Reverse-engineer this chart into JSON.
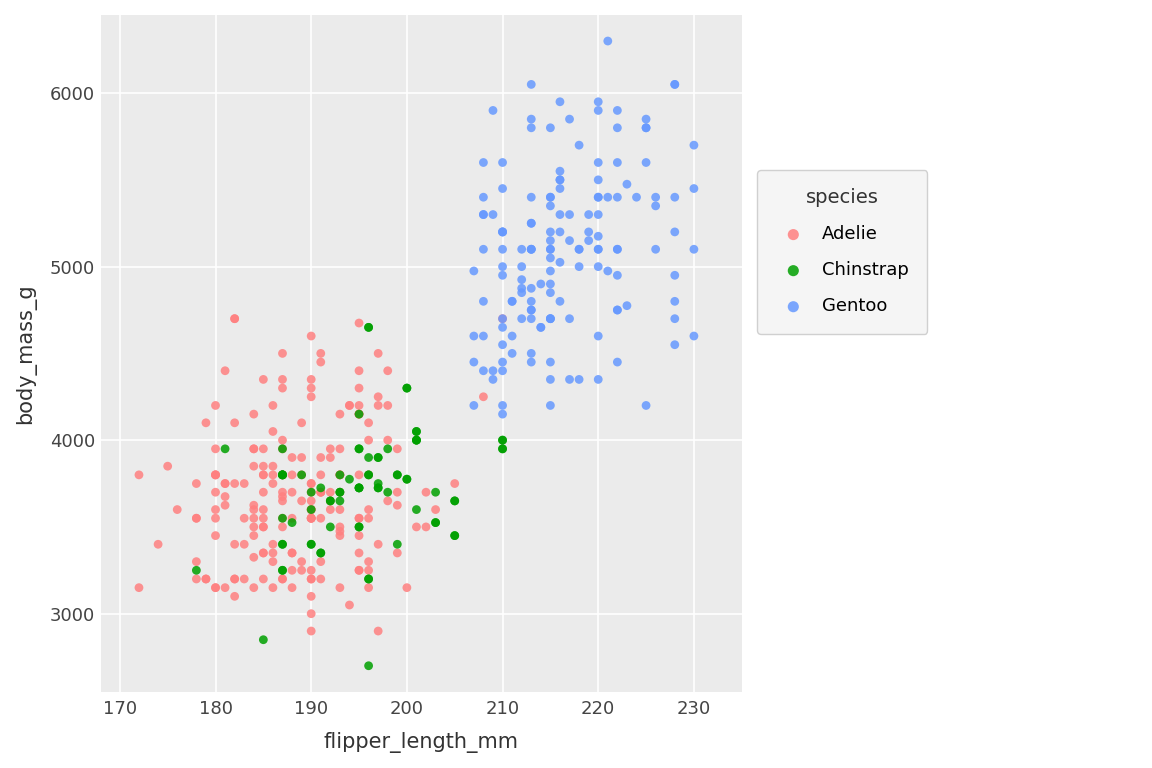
{
  "title": "",
  "xlabel": "flipper_length_mm",
  "ylabel": "body_mass_g",
  "legend_title": "species",
  "species": {
    "Adelie": {
      "color": "#FF8080",
      "flipper_length_mm": [
        181,
        186,
        195,
        193,
        190,
        181,
        195,
        193,
        190,
        186,
        180,
        182,
        191,
        198,
        185,
        195,
        197,
        184,
        194,
        174,
        180,
        189,
        185,
        180,
        187,
        183,
        187,
        172,
        180,
        178,
        178,
        188,
        184,
        195,
        196,
        190,
        180,
        181,
        184,
        182,
        195,
        186,
        196,
        185,
        190,
        182,
        179,
        188,
        185,
        195,
        180,
        180,
        187,
        183,
        187,
        172,
        180,
        178,
        178,
        188,
        184,
        195,
        196,
        190,
        180,
        181,
        184,
        182,
        195,
        186,
        196,
        185,
        190,
        182,
        179,
        188,
        185,
        182,
        180,
        191,
        193,
        185,
        182,
        184,
        184,
        182,
        183,
        187,
        179,
        186,
        188,
        190,
        175,
        186,
        187,
        190,
        180,
        185,
        187,
        191,
        186,
        193,
        181,
        194,
        185,
        195,
        185,
        192,
        184,
        192,
        195,
        188,
        190,
        198,
        190,
        190,
        196,
        197,
        190,
        195,
        191,
        184,
        187,
        195,
        189,
        196,
        187,
        193,
        191,
        194,
        190,
        189,
        189,
        190,
        202,
        205,
        185,
        186,
        187,
        208,
        190,
        196,
        178,
        192,
        192,
        203,
        183,
        190,
        193,
        184,
        199,
        190,
        181,
        197,
        198,
        191,
        193,
        197,
        191,
        196,
        188,
        199,
        189,
        189,
        187,
        198,
        176,
        202,
        186,
        199,
        191,
        195,
        191,
        210,
        190,
        197,
        193,
        199,
        187,
        190,
        191,
        200,
        185,
        193,
        193,
        187,
        188,
        190,
        192,
        185,
        190,
        184,
        195,
        193,
        187,
        201
      ],
      "body_mass_g": [
        3750,
        3800,
        3250,
        3450,
        3650,
        3625,
        4675,
        3475,
        4250,
        3300,
        3700,
        3200,
        3800,
        4400,
        3700,
        3450,
        4500,
        3325,
        4200,
        3400,
        3600,
        3800,
        3950,
        3800,
        3800,
        3550,
        3200,
        3150,
        3950,
        3550,
        3300,
        3700,
        3450,
        4400,
        3600,
        3100,
        4200,
        3150,
        3550,
        3200,
        3550,
        3750,
        4100,
        3350,
        3550,
        4700,
        3200,
        3800,
        3350,
        3800,
        3150,
        3800,
        3550,
        3200,
        3950,
        3800,
        3800,
        3550,
        3200,
        3150,
        3950,
        3550,
        3300,
        3700,
        3450,
        4400,
        3600,
        3100,
        4200,
        3150,
        3550,
        3200,
        3550,
        3750,
        4100,
        3350,
        3550,
        4700,
        3150,
        3700,
        3800,
        3800,
        3400,
        3850,
        3950,
        4100,
        3750,
        3200,
        3200,
        3350,
        3550,
        3600,
        3850,
        3850,
        3650,
        3200,
        3550,
        3500,
        3675,
        4450,
        3400,
        4150,
        3750,
        3050,
        3800,
        3250,
        3600,
        3900,
        4150,
        3950,
        4150,
        3900,
        4600,
        3650,
        3200,
        3600,
        4000,
        4200,
        3750,
        4150,
        3700,
        3500,
        4300,
        4150,
        4100,
        3800,
        3700,
        3800,
        3700,
        4200,
        3550,
        3650,
        3250,
        3600,
        3700,
        3750,
        3850,
        4200,
        4000,
        4250,
        3250,
        3250,
        3750,
        3650,
        3600,
        3600,
        3400,
        3000,
        3700,
        3625,
        3625,
        3750,
        3675,
        4250,
        4000,
        4500,
        3600,
        3400,
        3900,
        3150,
        3250,
        3700,
        3900,
        3300,
        4500,
        4200,
        3600,
        3500,
        4050,
        3950,
        3550,
        4300,
        3200,
        4700,
        4350,
        2900,
        3150,
        3350,
        4350,
        3550,
        3300,
        3150,
        3500,
        3950,
        3800,
        3500,
        3350,
        4300,
        3700,
        4350,
        2900,
        3150,
        3350,
        3500,
        3800,
        3500
      ]
    },
    "Chinstrap": {
      "color": "#00A000",
      "flipper_length_mm": [
        192,
        196,
        193,
        188,
        197,
        198,
        178,
        197,
        195,
        198,
        193,
        194,
        185,
        201,
        190,
        201,
        197,
        181,
        190,
        195,
        191,
        187,
        193,
        195,
        197,
        200,
        200,
        191,
        205,
        187,
        201,
        187,
        203,
        195,
        199,
        195,
        210,
        192,
        205,
        210,
        187,
        196,
        196,
        196,
        201,
        190,
        187,
        187,
        193,
        195,
        197,
        200,
        200,
        191,
        205,
        187,
        201,
        187,
        203,
        195,
        199,
        195,
        210,
        192,
        205,
        210,
        187,
        196,
        196,
        196,
        201,
        190,
        187,
        196,
        199,
        189,
        203
      ],
      "body_mass_g": [
        3500,
        3900,
        3650,
        3525,
        3725,
        3950,
        3250,
        3750,
        4150,
        3700,
        3800,
        3775,
        2850,
        4000,
        3700,
        3600,
        3725,
        3950,
        3600,
        3725,
        3725,
        3550,
        3700,
        3725,
        3900,
        3775,
        4300,
        3350,
        3450,
        3250,
        4050,
        3800,
        3525,
        3950,
        3800,
        3500,
        3950,
        3650,
        3650,
        4000,
        3400,
        4650,
        3200,
        3800,
        4000,
        3400,
        3800,
        3950,
        3700,
        3725,
        3900,
        3775,
        4300,
        3350,
        3450,
        3250,
        4050,
        3800,
        3525,
        3950,
        3800,
        3500,
        3950,
        3650,
        3650,
        4000,
        3400,
        4650,
        3200,
        3800,
        4000,
        3400,
        3800,
        2700,
        3400,
        3800,
        3700
      ]
    },
    "Gentoo": {
      "color": "#6699FF",
      "flipper_length_mm": [
        211,
        230,
        210,
        218,
        215,
        210,
        211,
        219,
        209,
        215,
        214,
        216,
        214,
        213,
        210,
        217,
        210,
        221,
        209,
        222,
        218,
        215,
        213,
        215,
        215,
        215,
        216,
        215,
        210,
        220,
        222,
        209,
        207,
        221,
        211,
        212,
        228,
        217,
        213,
        220,
        208,
        207,
        220,
        220,
        213,
        219,
        208,
        208,
        208,
        225,
        210,
        216,
        222,
        217,
        210,
        225,
        213,
        215,
        210,
        220,
        213,
        222,
        209,
        207,
        221,
        211,
        212,
        228,
        217,
        213,
        220,
        208,
        207,
        220,
        220,
        213,
        219,
        208,
        208,
        208,
        225,
        210,
        216,
        222,
        217,
        210,
        225,
        213,
        215,
        210,
        220,
        213,
        213,
        215,
        210,
        218,
        215,
        213,
        222,
        226,
        218,
        215,
        228,
        216,
        224,
        215,
        220,
        213,
        214,
        215,
        223,
        215,
        215,
        228,
        215,
        215,
        210,
        222,
        212,
        213,
        223,
        212,
        216,
        216,
        220,
        213,
        212,
        228,
        212,
        210,
        216,
        222,
        218,
        225,
        222,
        226,
        230,
        230,
        228,
        222,
        230,
        228,
        228,
        226,
        213,
        210,
        216,
        220,
        220
      ],
      "body_mass_g": [
        4500,
        5700,
        4450,
        5700,
        5400,
        4550,
        4800,
        5200,
        4400,
        5150,
        4650,
        5550,
        4650,
        5850,
        4200,
        5850,
        4150,
        6300,
        5300,
        5600,
        5100,
        5100,
        5100,
        4350,
        4450,
        5400,
        4800,
        4850,
        4700,
        4350,
        4750,
        5900,
        4600,
        4975,
        4600,
        5100,
        6050,
        5150,
        5400,
        5100,
        5300,
        4200,
        5600,
        5300,
        4450,
        5300,
        4400,
        5600,
        4800,
        5800,
        5200,
        5950,
        5800,
        4700,
        5100,
        5800,
        5250,
        4700,
        4650,
        5400,
        5100,
        5100,
        4350,
        4450,
        5400,
        4800,
        4850,
        4700,
        4350,
        4750,
        5900,
        4600,
        4975,
        4600,
        5100,
        6050,
        5150,
        5400,
        5100,
        5300,
        4200,
        5600,
        5300,
        4450,
        5300,
        4400,
        5600,
        4800,
        5800,
        5200,
        5950,
        5800,
        4700,
        5050,
        4950,
        4350,
        5350,
        4750,
        4750,
        5400,
        5000,
        4700,
        4950,
        5200,
        5400,
        4200,
        5400,
        4500,
        4900,
        4900,
        4775,
        4700,
        5100,
        5400,
        4975,
        5200,
        5200,
        5400,
        4925,
        5100,
        5475,
        4875,
        5500,
        5025,
        5175,
        4875,
        4700,
        4550,
        5000,
        5000,
        5500,
        5100,
        5100,
        5850,
        5900,
        5100,
        5450,
        4600,
        6050,
        4950,
        5100,
        5200,
        4800,
        5350,
        5250,
        5450,
        5450,
        5500,
        5000
      ]
    }
  },
  "xlim": [
    168,
    235
  ],
  "ylim": [
    2550,
    6450
  ],
  "xticks": [
    170,
    180,
    190,
    200,
    210,
    220,
    230
  ],
  "yticks": [
    3000,
    4000,
    5000,
    6000
  ],
  "bg_color": "#EBEBEB",
  "grid_color": "#FFFFFF",
  "marker_size": 40,
  "marker_alpha": 0.85,
  "legend_marker_size": 8
}
